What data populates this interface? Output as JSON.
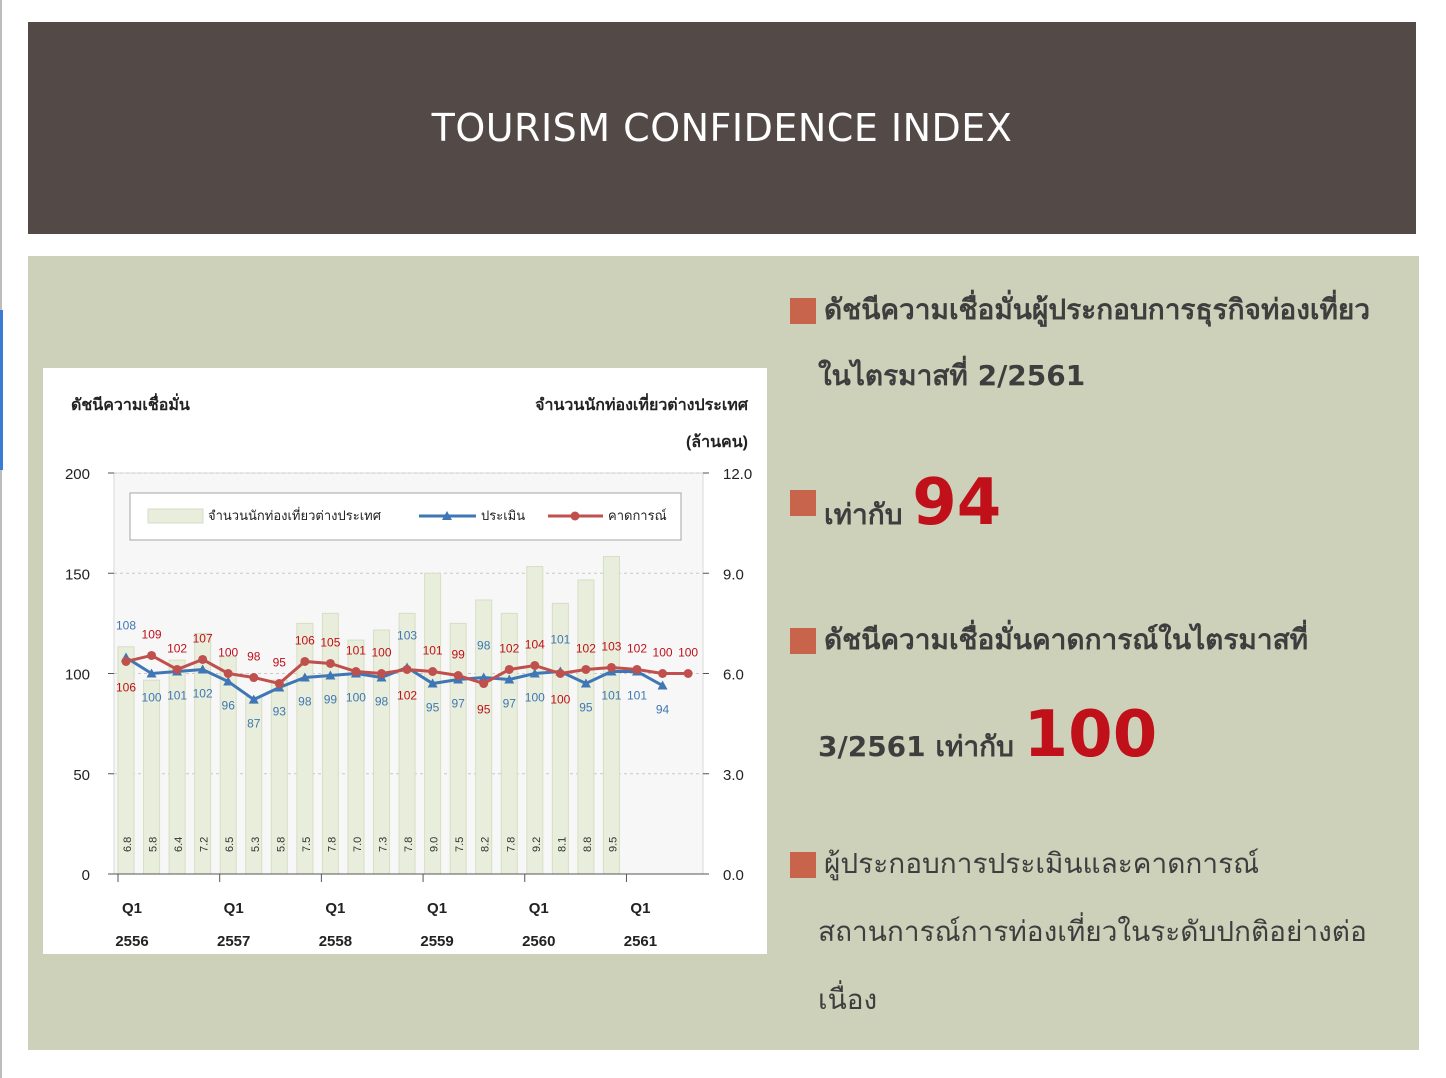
{
  "slide": {
    "title": "TOURISM CONFIDENCE INDEX"
  },
  "bullets": {
    "b1_line1": "ดัชนีความเชื่อมั่นผู้ประกอบการธุรกิจท่องเที่ยว",
    "b1_line2": "ในไตรมาสที่ 2/2561",
    "b2_prefix": "เท่ากับ",
    "b2_value": "94",
    "b3_line1": "ดัชนีความเชื่อมั่นคาดการณ์ในไตรมาสที่",
    "b3_prefix": "3/2561 เท่ากับ",
    "b3_value": "100",
    "b4_line1": "ผู้ประกอบการประเมินและคาดการณ์",
    "b4_line2": "สถานการณ์การท่องเที่ยวในระดับปกติอย่างต่อ",
    "b4_line3": "เนื่อง"
  },
  "colors": {
    "header_bg": "#534a48",
    "panel_bg": "#cdd1ba",
    "bullet_square": "#c8644c",
    "highlight_red": "#c0101a",
    "bar_fill": "#e8eedb",
    "line_assess": "#3f76b5",
    "line_forecast": "#c0504d"
  },
  "chart_data": {
    "type": "bar+line",
    "left_axis_label": "ดัชนีความเชื่อมั่น",
    "right_axis_label_line1": "จำนวนนักท่องเที่ยวต่างประเทศ",
    "right_axis_label_line2": "(ล้านคน)",
    "left_ylim": [
      0,
      200
    ],
    "left_ticks": [
      "0",
      "50",
      "100",
      "150",
      "200"
    ],
    "right_ylim": [
      0,
      12
    ],
    "right_ticks": [
      "0.0",
      "3.0",
      "6.0",
      "9.0",
      "12.0"
    ],
    "x_groups": [
      {
        "q": "Q1",
        "year": "2556"
      },
      {
        "q": "Q1",
        "year": "2557"
      },
      {
        "q": "Q1",
        "year": "2558"
      },
      {
        "q": "Q1",
        "year": "2559"
      },
      {
        "q": "Q1",
        "year": "2560"
      },
      {
        "q": "Q1",
        "year": "2561"
      }
    ],
    "legend": {
      "bars": "จำนวนนักท่องเที่ยวต่างประเทศ",
      "assess": "ประเมิน",
      "forecast": "คาดการณ์"
    },
    "bars": [
      6.8,
      5.8,
      6.4,
      7.2,
      6.5,
      5.3,
      5.8,
      7.5,
      7.8,
      7.0,
      7.3,
      7.8,
      9.0,
      7.5,
      8.2,
      7.8,
      9.2,
      8.1,
      8.8,
      9.5
    ],
    "bar_labels": [
      "6.8",
      "5.8",
      "6.4",
      "7.2",
      "6.5",
      "5.3",
      "5.8",
      "7.5",
      "7.8",
      "7.0",
      "7.3",
      "7.8",
      "9.0",
      "7.5",
      "8.2",
      "7.8",
      "9.2",
      "8.1",
      "8.8",
      "9.5"
    ],
    "assess": [
      108,
      100,
      101,
      102,
      96,
      87,
      93,
      98,
      99,
      100,
      98,
      103,
      95,
      97,
      98,
      97,
      100,
      101,
      95,
      101,
      101,
      94
    ],
    "forecast": [
      106,
      109,
      102,
      107,
      100,
      98,
      95,
      106,
      105,
      101,
      100,
      102,
      101,
      99,
      95,
      102,
      104,
      100,
      102,
      103,
      102,
      100,
      100
    ]
  }
}
